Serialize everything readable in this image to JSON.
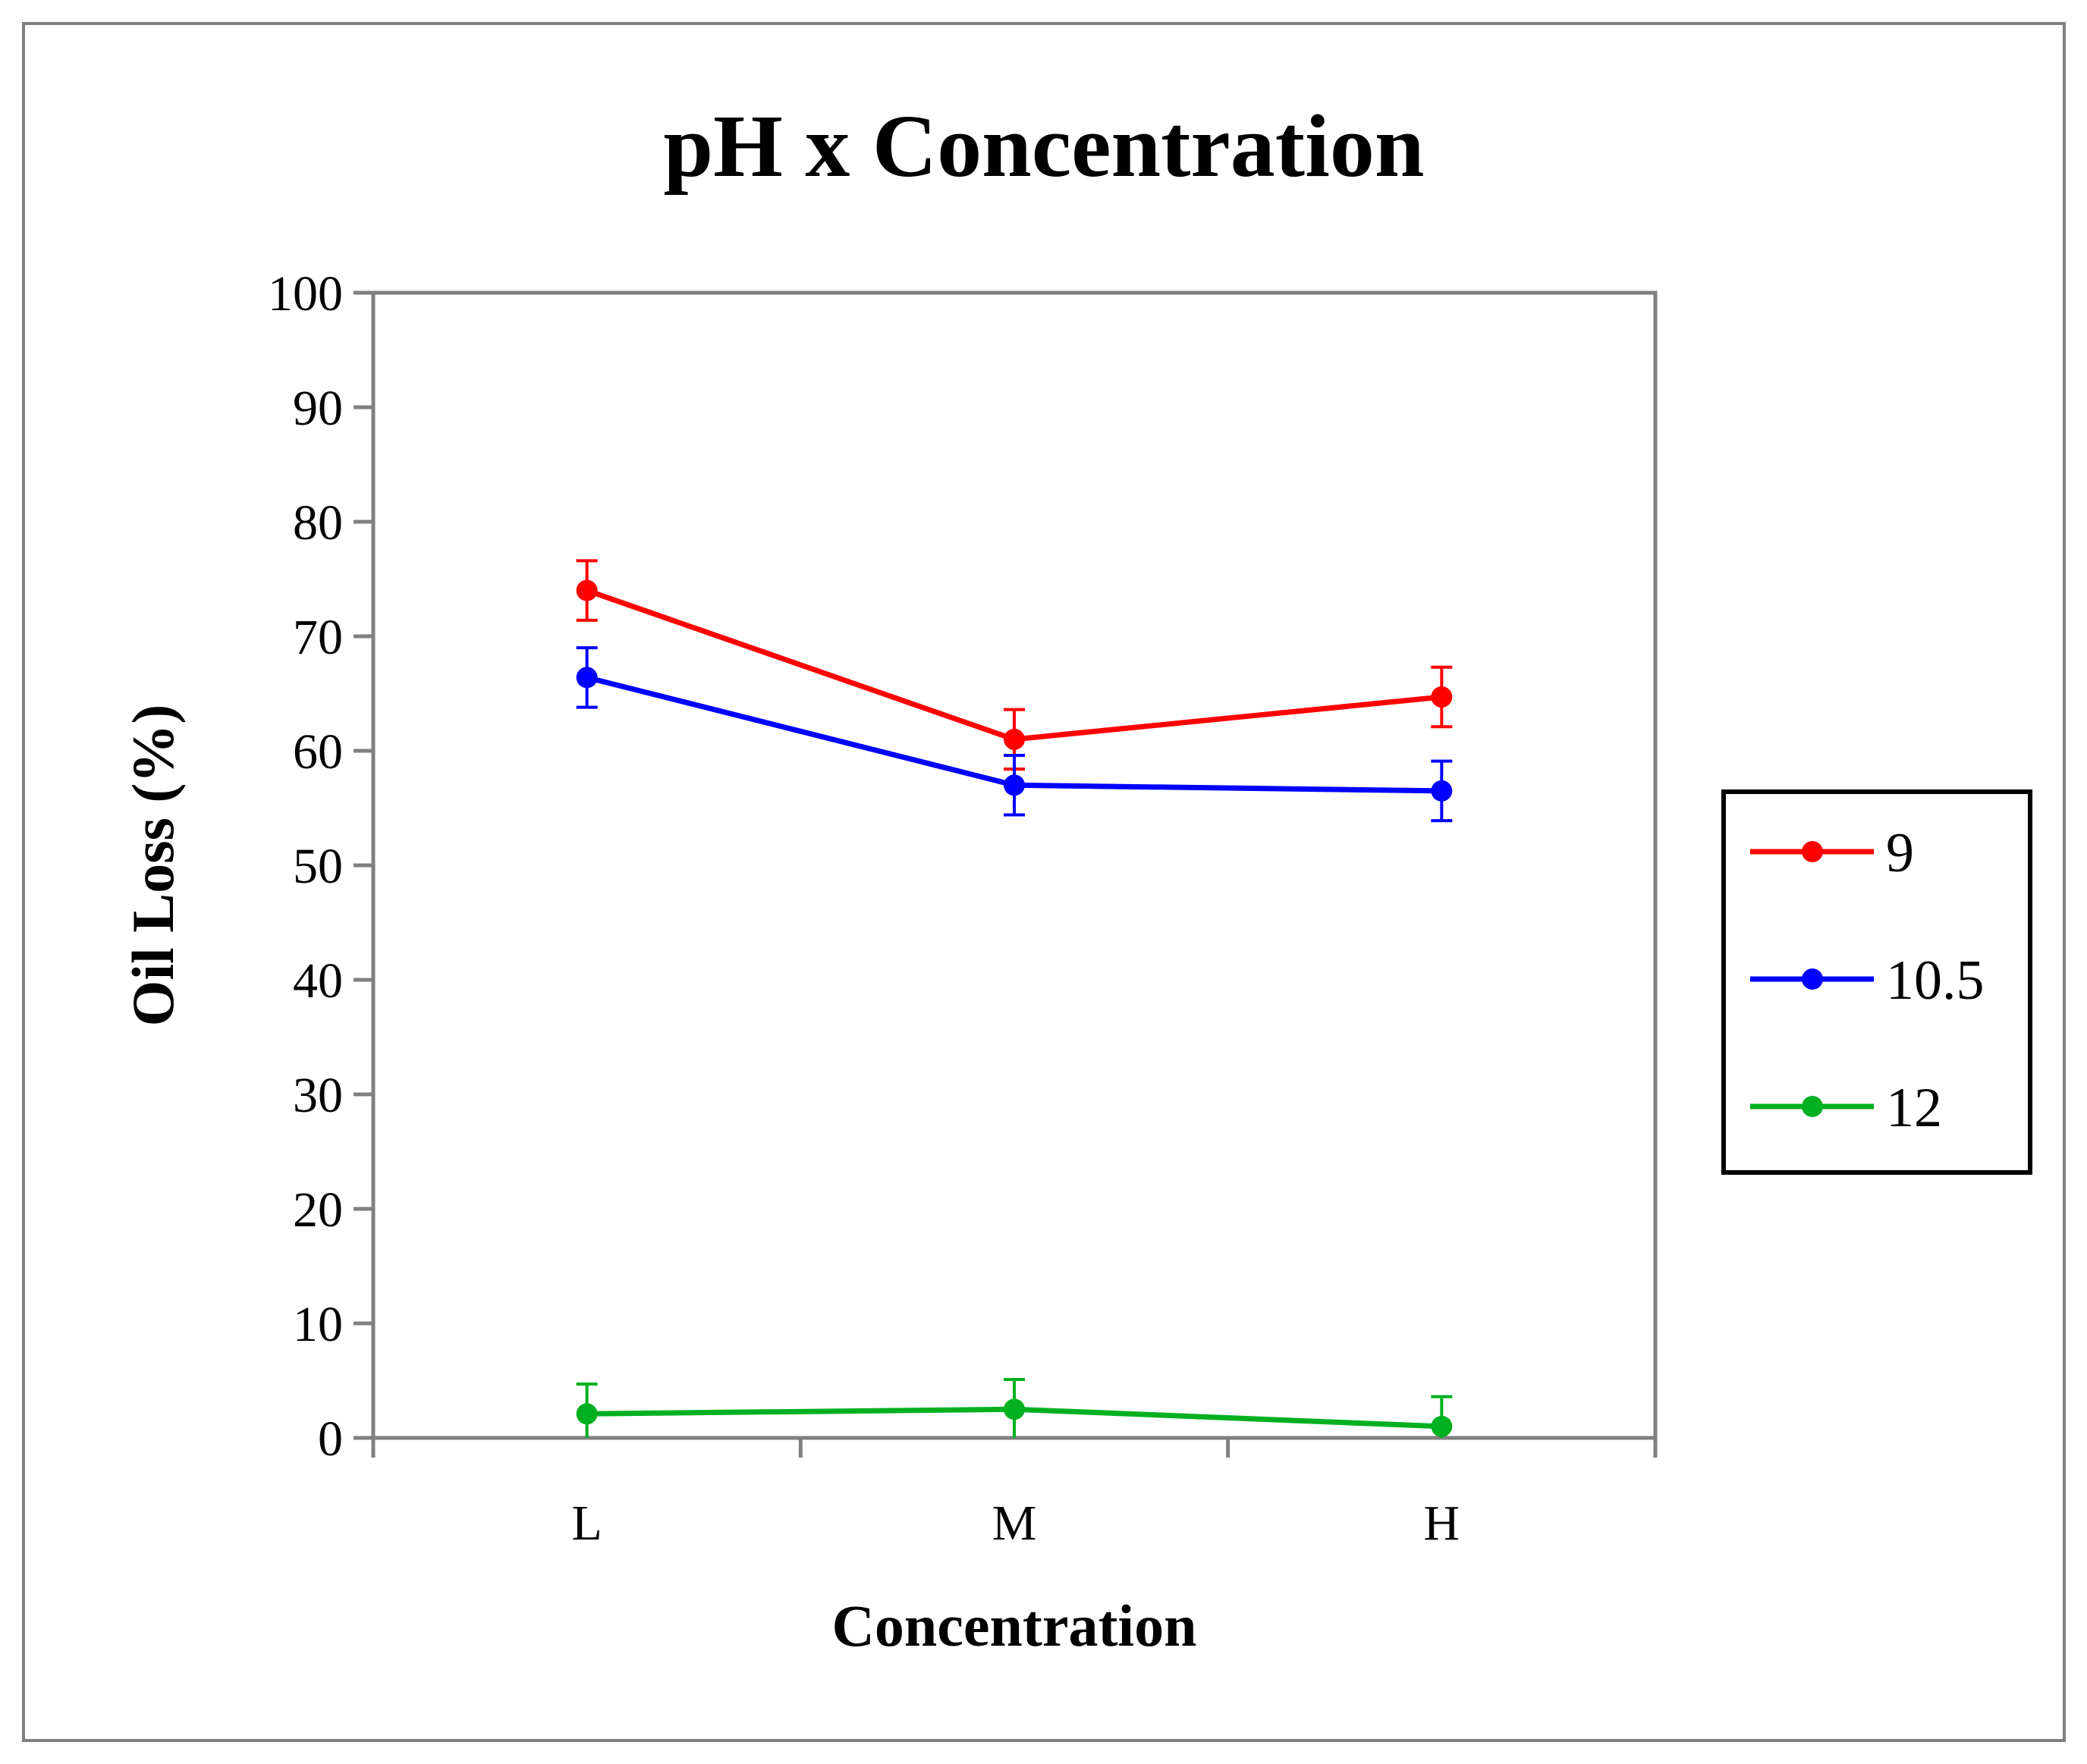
{
  "chart_data": {
    "type": "line",
    "title": "pH x Concentration",
    "xlabel": "Concentration",
    "ylabel": "Oil Loss (%)",
    "categories": [
      "L",
      "M",
      "H"
    ],
    "ylim": [
      0,
      100
    ],
    "yticks": [
      "0",
      "10",
      "20",
      "30",
      "40",
      "50",
      "60",
      "70",
      "80",
      "90",
      "100"
    ],
    "grid": false,
    "legend_position": "right",
    "series": [
      {
        "name": "9",
        "color": "#ff0000",
        "values": [
          74.0,
          61.0,
          64.7
        ],
        "errors": [
          2.6,
          2.6,
          2.6
        ]
      },
      {
        "name": "10.5",
        "color": "#0000ff",
        "values": [
          66.4,
          57.0,
          56.5
        ],
        "errors": [
          2.6,
          2.6,
          2.6
        ]
      },
      {
        "name": "12",
        "color": "#00b020",
        "values": [
          2.1,
          2.5,
          1.0
        ],
        "errors": [
          2.6,
          2.6,
          2.6
        ]
      }
    ]
  }
}
